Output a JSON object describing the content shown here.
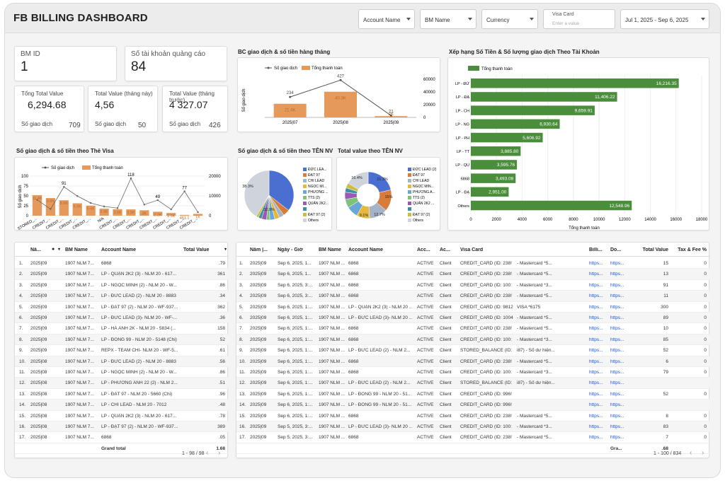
{
  "header": {
    "title": "FB BILLING DASHBOARD"
  },
  "filters": {
    "account": "Account Name",
    "bm": "BM Name",
    "currency": "Currency",
    "visa_label": "Visa Card",
    "visa_placeholder": "Enter a value",
    "date": "Jul 1, 2025 - Sep 6, 2025"
  },
  "kpi": {
    "bm_label": "BM ID",
    "bm_value": "1",
    "acct_label": "Số tài khoản quảng cáo",
    "acct_value": "84",
    "total_label": "Tổng Total Value",
    "total_value": "6,294.68",
    "total_tx_label": "Số giao dịch",
    "total_tx": "709",
    "month_label": "Total Value (tháng này)",
    "month_value": "4,56",
    "month_tx_label": "Số giao dịch",
    "month_tx": "50",
    "prev_label": "Total Value (tháng trước)",
    "prev_value": "4 327.07",
    "prev_tx_label": "Số giao dịch",
    "prev_tx": "426"
  },
  "monthly": {
    "title": "BC giao dịch & số tiền hàng tháng",
    "legend_count": "Số giao dịch",
    "legend_amount": "Tổng thanh toán",
    "ylabel": "Số giao dịch",
    "y_ticks": [
      "0",
      "20000",
      "40000",
      "60000"
    ],
    "labels_count": [
      "234",
      "427",
      "21"
    ],
    "labels_amount": [
      "21.4K",
      "40.3K",
      "2K"
    ]
  },
  "visa_chart": {
    "title": "Số giao dịch & số tiền theo Thẻ Visa",
    "legend_count": "Số giao dịch",
    "legend_amount": "Tổng thanh toán",
    "ylabel": "Số giao dịch",
    "y_left": [
      "0",
      "25",
      "50",
      "75",
      "100"
    ],
    "y_right": [
      "0",
      "10000",
      "20000"
    ],
    "x_labels": [
      "STORED_...",
      "CREDIT_...",
      "CREDIT_...",
      "CREDIT_...",
      "CREDIT_...",
      "N/A",
      "CREDIT_...",
      "CREDIT_...",
      "CREDIT_...",
      "CREDIT_...",
      "CREDIT_...",
      "CREDIT_...",
      "CREDIT_..."
    ],
    "data_labels": [
      "91",
      "118",
      "49",
      "77",
      "11.4K",
      "9.8K",
      "8.6K",
      "6.9K",
      "5.6K",
      "3.9K",
      "3.6K",
      "3.5K",
      "3K",
      "2.2K",
      "1.5K",
      "451.1",
      "1K"
    ]
  },
  "pie1": {
    "title": "Số giao dịch & số tiền theo TÊN NV",
    "labels": [
      "38.3%",
      "32.9%"
    ]
  },
  "pie2": {
    "title": "Total value theo TÊN NV",
    "labels": [
      "16.4%",
      "21.3%",
      "15%",
      "12.7%",
      "9.1%"
    ]
  },
  "legend_names": [
    "ĐỨC LEA...",
    "ĐẠT 97",
    "CHI LEAD",
    "NGỌC MI...",
    "PHƯƠNG ...",
    "TTS (2)",
    "QUẢN 2K2...",
    "",
    "ĐẠT 97 (2)",
    "Others"
  ],
  "legend_names2": [
    "ĐỨC LEAD (2)",
    "ĐẠT 97",
    "CHI LEAD",
    "NGỌC MIN...",
    "PHƯƠNG A...",
    "TTS (2)",
    "QUẢN 2K2 ...",
    "",
    "ĐẠT 97 (2)",
    "Others"
  ],
  "ranking": {
    "title": "Xếp hạng Số Tiền & Số lượng giao dịch Theo Tài Khoản",
    "legend": "Tổng thanh toán",
    "xlabel": "Tổng thanh toán",
    "x_ticks": [
      "0",
      "2000",
      "4000",
      "6000",
      "8000",
      "10000",
      "12000",
      "14000",
      "16000",
      "18000"
    ],
    "bar_labels": [
      "16,216.35",
      "11,406.22",
      "9,659.91",
      "6,930.64",
      "5,606.92",
      "3,885.80",
      "3,595.76",
      "3,493.08",
      "2,951.00",
      "12,548.96"
    ],
    "cat_labels": [
      "LP - ĐỨC LEAD...",
      "LP - ĐẠT 97 - NLM...",
      "LP - CHI LEAD...",
      "LP - NGỌC MINH...",
      "LP - PHƯ...",
      "LP - TTS (2) - NLM...",
      "LP - QUẬN 2K2 (...",
      "6868",
      "LP - ĐẠT 97 (2) - N...",
      "Others"
    ]
  },
  "table1": {
    "headers": [
      "Nă...",
      "BM Name",
      "Account Name",
      "Total Value"
    ],
    "rows": [
      [
        "1.",
        "2025|09",
        "1907 NLM 7...",
        "6868",
        ".79"
      ],
      [
        "2.",
        "2025|09",
        "1907 NLM 7...",
        "LP - QUẬN 2K2 (3) - NLM 20 - 617...",
        "361"
      ],
      [
        "3.",
        "2025|09",
        "1907 NLM 7...",
        "LP - NGỌC MINH (2) - NLM 20 - W...",
        ".86"
      ],
      [
        "4.",
        "2025|09",
        "1907 NLM 7...",
        "LP - ĐỨC LEAD (2) - NLM 20 - 8883",
        ".34"
      ],
      [
        "5.",
        "2025|09",
        "1907 NLM 7...",
        "LP - ĐẠT 97 (2) - NLM 20 - WF-937...",
        "362"
      ],
      [
        "6.",
        "2025|09",
        "1907 NLM 7...",
        "LP - ĐỨC LEAD (3)- NLM 20 - WF-...",
        ".36"
      ],
      [
        "7.",
        "2025|09",
        "1907 NLM 7...",
        "LP - HÀ ANH 2K - NLM 20 - 5834 (...",
        "158"
      ],
      [
        "8.",
        "2025|09",
        "1907 NLM 7...",
        "LP - ĐÔNG 99 - NLM 20 - 5148 (Chi)",
        "52"
      ],
      [
        "9.",
        "2025|09",
        "1907 NLM 7...",
        "REPX - TEAM CHI- NLM 20 - WF-5...",
        ".61"
      ],
      [
        "10.",
        "2025|08",
        "1907 NLM 7...",
        "LP - ĐỨC LEAD (2) - NLM 20 - 8883",
        ".56"
      ],
      [
        "11.",
        "2025|08",
        "1907 NLM 7...",
        "LP - NGỌC MINH (2) - NLM 20 - W...",
        ".86"
      ],
      [
        "12.",
        "2025|08",
        "1907 NLM 7...",
        "LP - PHƯƠNG ANH 22 (2) - NLM 2...",
        ".51"
      ],
      [
        "13.",
        "2025|08",
        "1907 NLM 7...",
        "LP - ĐẠT 97 - NLM 20 - 5660 (Chi)",
        ".96"
      ],
      [
        "14.",
        "2025|08",
        "1907 NLM 7...",
        "LP - CHI LEAD - NLM 20 - 7012",
        ".48"
      ],
      [
        "15.",
        "2025|08",
        "1907 NLM 7...",
        "LP - QUẬN 2K2 (3) - NLM 20 - 617...",
        ".78"
      ],
      [
        "16.",
        "2025|08",
        "1907 NLM 7...",
        "LP - ĐẠT 97 (2) - NLM 20 - WF-937...",
        "389"
      ],
      [
        "17.",
        "2025|08",
        "1907 NLM 7...",
        "6868",
        ".05"
      ]
    ],
    "grand_total": "Grand total",
    "grand_value": "1.68",
    "pager": "1 - 98 / 98"
  },
  "table2": {
    "headers": [
      "Năm |...",
      "Ngày - Giờ",
      "BM Name",
      "Account Name",
      "Acc...",
      "Ac...",
      "Visa Card",
      "Billi...",
      "Do...",
      "Total Value",
      "Tax & Fee %"
    ],
    "rows": [
      [
        "1.",
        "2025|09",
        "Sep 6, 2025, 1...",
        "1907 NLM ...",
        "6868",
        "ACTIVE",
        "Client",
        "CREDIT_CARD (ID: 238!",
        "- Mastercard *5...",
        "https...",
        "https...",
        "15",
        "0"
      ],
      [
        "2.",
        "2025|09",
        "Sep 6, 2025, 1...",
        "1907 NLM ...",
        "6868",
        "ACTIVE",
        "Client",
        "CREDIT_CARD (ID: 238!",
        "- Mastercard *5...",
        "https...",
        "https...",
        "13",
        "0"
      ],
      [
        "3.",
        "2025|09",
        "Sep 6, 2025, 3:...",
        "1907 NLM ...",
        "6868",
        "ACTIVE",
        "Client",
        "CREDIT_CARD (ID: 100:",
        "- Mastercard *3...",
        "https...",
        "https...",
        "91",
        "0"
      ],
      [
        "4.",
        "2025|09",
        "Sep 6, 2025, 3:...",
        "1907 NLM ...",
        "6868",
        "ACTIVE",
        "Client",
        "CREDIT_CARD (ID: 238!",
        "- Mastercard *5...",
        "https...",
        "https...",
        "11",
        "0"
      ],
      [
        "5.",
        "2025|09",
        "Sep 6, 2025, 1:...",
        "1907 NLM ...",
        "LP - QUẬN 2K2 (3) - NLM 20 ...",
        "ACTIVE",
        "Client",
        "CREDIT_CARD (ID: 9812",
        "VISA *6175",
        "https...",
        "https...",
        "300",
        "0"
      ],
      [
        "6.",
        "2025|09",
        "Sep 6, 2025, 1:...",
        "1907 NLM ...",
        "LP - ĐỨC LEAD (3)- NLM 20 ...",
        "ACTIVE",
        "Client",
        "CREDIT_CARD (ID: 1004",
        "- Mastercard *5...",
        "https...",
        "https...",
        "89",
        "0"
      ],
      [
        "7.",
        "2025|09",
        "Sep 6, 2025, 1:...",
        "1907 NLM ...",
        "6868",
        "ACTIVE",
        "Client",
        "CREDIT_CARD (ID: 238!",
        "- Mastercard *5...",
        "https...",
        "https...",
        "10",
        "0"
      ],
      [
        "8.",
        "2025|09",
        "Sep 6, 2025, 1:...",
        "1907 NLM ...",
        "6868",
        "ACTIVE",
        "Client",
        "CREDIT_CARD (ID: 100:",
        "- Mastercard *3...",
        "https...",
        "https...",
        "85",
        "0"
      ],
      [
        "9.",
        "2025|09",
        "Sep 6, 2025, 1:...",
        "1907 NLM ...",
        "LP - ĐỨC LEAD (2) - NLM 2...",
        "ACTIVE",
        "Client",
        "STORED_BALANCE (ID:",
        "i87) - Số dư hiện...",
        "https...",
        "https...",
        "52",
        "0"
      ],
      [
        "10.",
        "2025|09",
        "Sep 6, 2025, 1:...",
        "1907 NLM ...",
        "6868",
        "ACTIVE",
        "Client",
        "CREDIT_CARD (ID: 238!",
        "- Mastercard *5...",
        "https...",
        "https...",
        "6",
        "0"
      ],
      [
        "11.",
        "2025|09",
        "Sep 6, 2025, 1:...",
        "1907 NLM ...",
        "6868",
        "ACTIVE",
        "Client",
        "CREDIT_CARD (ID: 100:",
        "- Mastercard *3...",
        "https...",
        "https...",
        "79",
        "0"
      ],
      [
        "12.",
        "2025|09",
        "Sep 6, 2025, 1:...",
        "1907 NLM ...",
        "LP - ĐỨC LEAD (2) - NLM 2...",
        "ACTIVE",
        "Client",
        "STORED_BALANCE (ID:",
        "i87) - Số dư hiện...",
        "https...",
        "https...",
        "",
        ""
      ],
      [
        "13.",
        "2025|09",
        "Sep 6, 2025, 1:...",
        "1907 NLM ...",
        "LP - ĐÔNG 99 - NLM 20 - 51...",
        "ACTIVE",
        "Client",
        "CREDIT_CARD (ID: 996!",
        "",
        "https...",
        "https...",
        "52",
        "0"
      ],
      [
        "14.",
        "2025|09",
        "Sep 6, 2025, 1:...",
        "1907 NLM ...",
        "LP - ĐÔNG 99 - NLM 20 - 51...",
        "ACTIVE",
        "Client",
        "CREDIT_CARD (ID: 996!",
        "",
        "https...",
        "https...",
        "",
        ""
      ],
      [
        "15.",
        "2025|09",
        "Sep 6, 2025, 1:...",
        "1907 NLM ...",
        "6868",
        "ACTIVE",
        "Client",
        "CREDIT_CARD (ID: 238!",
        "- Mastercard *5...",
        "https...",
        "https...",
        "8",
        "0"
      ],
      [
        "16.",
        "2025|09",
        "Sep 5, 2025, 3:...",
        "1907 NLM ...",
        "LP - ĐỨC LEAD (3)- NLM 20 ...",
        "ACTIVE",
        "Client",
        "CREDIT_CARD (ID: 100:",
        "- Mastercard *3...",
        "https...",
        "https...",
        "83",
        "0"
      ],
      [
        "17.",
        "2025|09",
        "Sep 5, 2025, 3:...",
        "1907 NLM ...",
        "6868",
        "ACTIVE",
        "Client",
        "CREDIT_CARD (ID: 238!",
        "- Mastercard *5...",
        "https...",
        "https...",
        "7",
        "0"
      ]
    ],
    "grand_total": "Gra...",
    "grand_value": ".68",
    "pager": "1 - 100 / 834"
  },
  "chart_data": [
    {
      "type": "bar",
      "title": "BC giao dịch & số tiền hàng tháng",
      "categories": [
        "2025|07",
        "2025|08",
        "2025|09"
      ],
      "series": [
        {
          "name": "Số giao dịch",
          "type": "line",
          "values": [
            234,
            427,
            21
          ]
        },
        {
          "name": "Tổng thanh toán",
          "values": [
            21400,
            40300,
            2000
          ]
        }
      ],
      "ylabel": "Số giao dịch",
      "ylim_right": [
        0,
        60000
      ]
    },
    {
      "type": "bar",
      "title": "Xếp hạng Số Tiền & Số lượng giao dịch Theo Tài Khoản",
      "series": [
        {
          "name": "Tổng thanh toán",
          "values": [
            16216.35,
            11406.22,
            9659.91,
            6930.64,
            5606.92,
            3885.8,
            3595.76,
            3493.08,
            2951.0,
            12548.96
          ]
        }
      ],
      "xlabel": "Tổng thanh toán",
      "xlim": [
        0,
        18000
      ]
    },
    {
      "type": "pie",
      "title": "Số giao dịch & số tiền theo TÊN NV",
      "values": [
        32.9,
        38.3
      ]
    },
    {
      "type": "pie",
      "title": "Total value theo TÊN NV",
      "values": [
        21.3,
        15,
        12.7,
        9.1,
        16.4
      ]
    }
  ]
}
